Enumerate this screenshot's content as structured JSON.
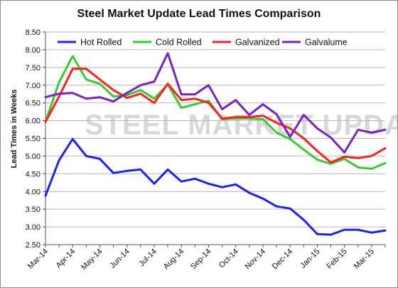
{
  "chart_data": {
    "type": "line",
    "title": "Steel Market Update Lead Times Comparison",
    "ylabel": "Lead Times in Weeks",
    "xlabel": "",
    "ylim": [
      2.5,
      8.5
    ],
    "yticks": [
      "2.50",
      "3.00",
      "3.50",
      "4.00",
      "4.50",
      "5.00",
      "5.50",
      "6.00",
      "6.50",
      "7.00",
      "7.50",
      "8.00",
      "8.50"
    ],
    "xtick_labels": [
      "Mar-14",
      "Apr-14",
      "May-14",
      "Jun-14",
      "Jul-14",
      "Aug-14",
      "Sep-14",
      "Oct-14",
      "Nov-14",
      "Dec-14",
      "Jan-15",
      "Feb-15",
      "Mar-15"
    ],
    "xtick_positions": [
      0,
      2,
      4,
      6,
      8,
      10,
      12,
      14,
      16,
      18,
      20,
      22,
      24
    ],
    "num_points": 26,
    "grid": true,
    "legend_position": "top",
    "watermark": "STEEL MARKET UPDATE",
    "series": [
      {
        "name": "Hot Rolled",
        "color": "#1e1eff",
        "values": [
          3.88,
          4.88,
          5.48,
          5.0,
          4.92,
          4.52,
          4.58,
          4.62,
          4.22,
          4.62,
          4.28,
          4.36,
          4.22,
          4.12,
          4.2,
          3.96,
          3.8,
          3.58,
          3.52,
          3.2,
          2.8,
          2.78,
          2.92,
          2.92,
          2.84,
          2.9
        ]
      },
      {
        "name": "Cold Rolled",
        "color": "#33cc33",
        "values": [
          5.96,
          7.08,
          7.82,
          7.16,
          7.04,
          6.68,
          6.72,
          6.86,
          6.62,
          7.02,
          6.36,
          6.46,
          6.56,
          6.04,
          6.06,
          6.06,
          6.04,
          5.66,
          5.48,
          5.18,
          4.9,
          4.78,
          4.92,
          4.68,
          4.64,
          4.8
        ]
      },
      {
        "name": "Galvanized",
        "color": "#ff2020",
        "values": [
          5.96,
          6.68,
          7.46,
          7.46,
          7.16,
          6.86,
          6.64,
          6.76,
          6.5,
          7.04,
          6.58,
          6.62,
          6.5,
          6.06,
          6.1,
          6.1,
          6.14,
          5.94,
          5.78,
          5.5,
          5.14,
          4.82,
          4.98,
          4.94,
          5.0,
          5.22
        ]
      },
      {
        "name": "Galvalume",
        "color": "#7b21c6",
        "values": [
          6.66,
          6.76,
          6.78,
          6.62,
          6.66,
          6.54,
          6.78,
          7.0,
          7.1,
          7.9,
          6.74,
          6.74,
          7.0,
          6.32,
          6.58,
          6.16,
          6.46,
          6.18,
          5.54,
          6.16,
          5.78,
          5.52,
          5.1,
          5.74,
          5.66,
          5.74
        ]
      }
    ]
  }
}
